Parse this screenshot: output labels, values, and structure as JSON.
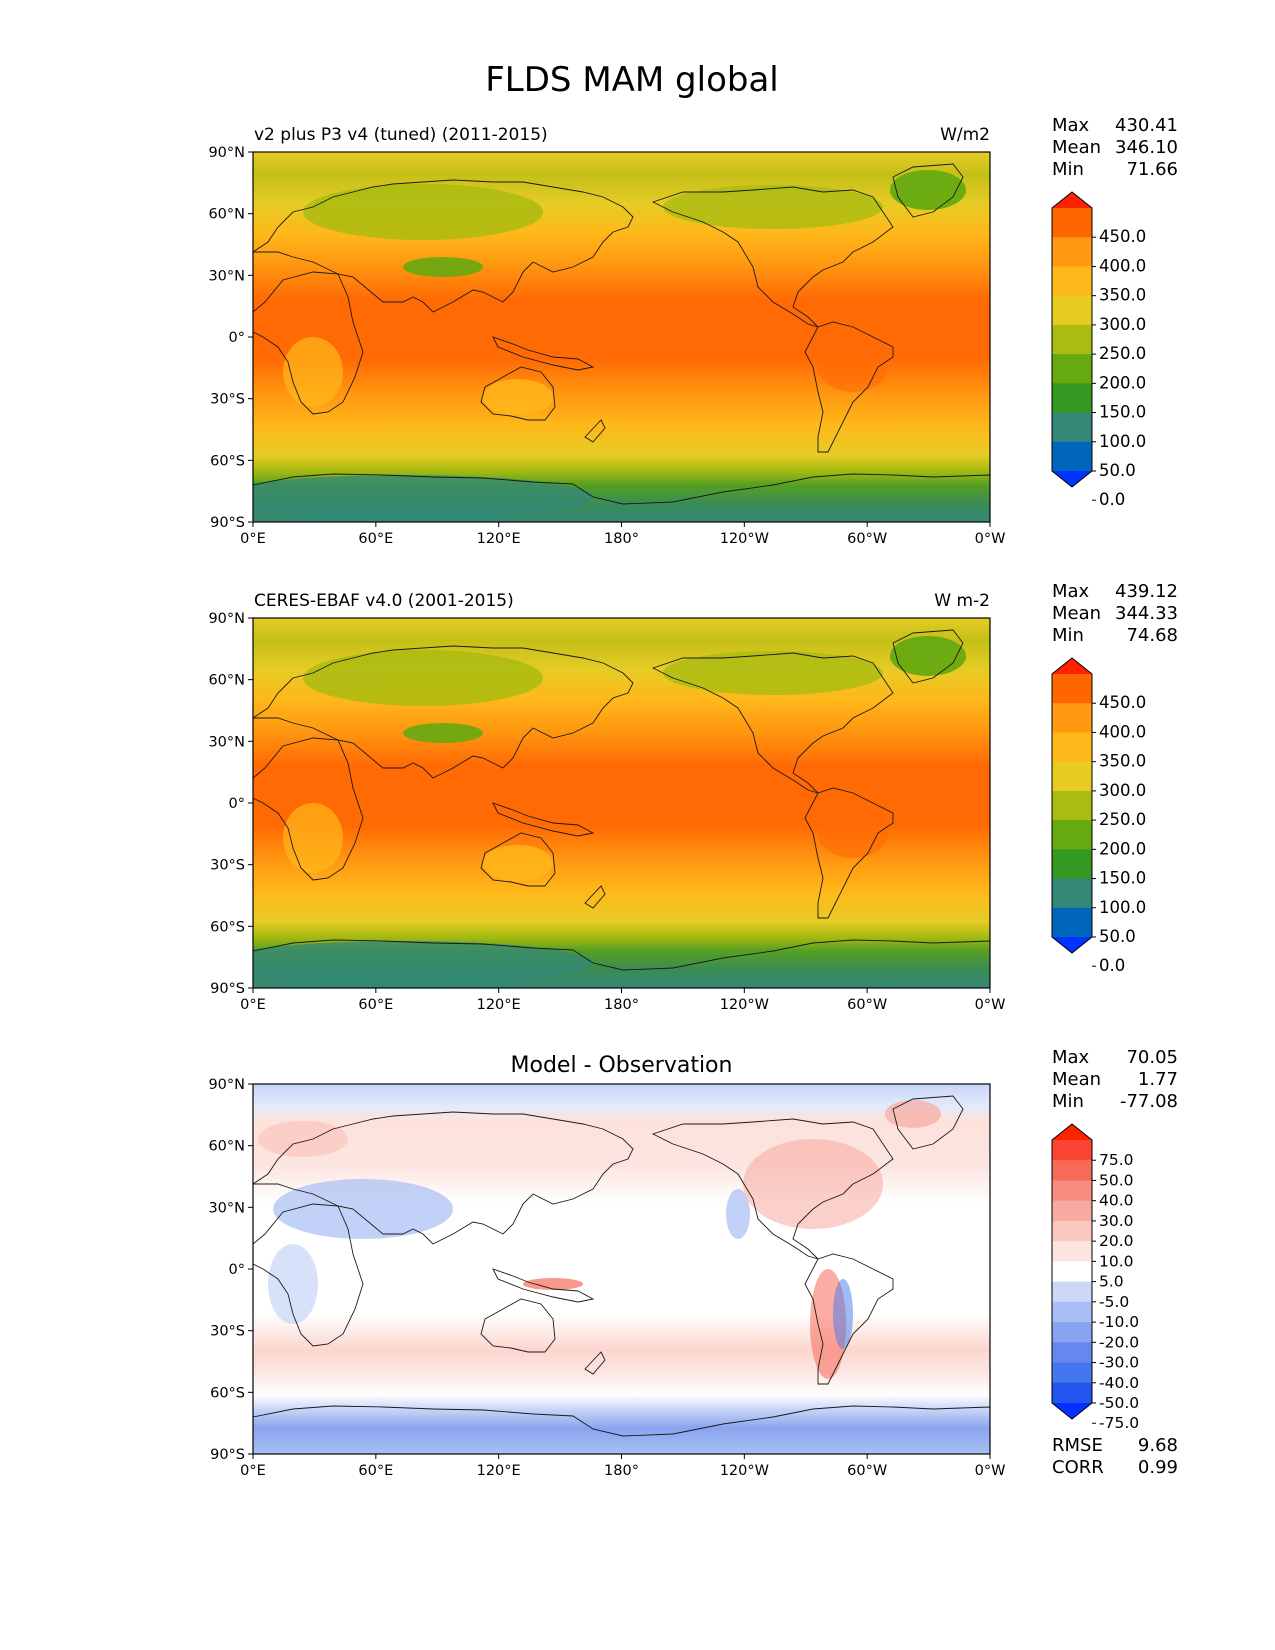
{
  "figure": {
    "title": "FLDS MAM global"
  },
  "axes": {
    "y_ticks": [
      "90°N",
      "60°N",
      "30°N",
      "0°",
      "30°S",
      "60°S",
      "90°S"
    ],
    "x_ticks": [
      "0°E",
      "60°E",
      "120°E",
      "180°",
      "120°W",
      "60°W",
      "0°W"
    ]
  },
  "panels": [
    {
      "title_left": "v2 plus P3 v4 (tuned) (2011-2015)",
      "title_center": "",
      "units": "W/m2",
      "stats": [
        {
          "label": "Max",
          "value": "430.41"
        },
        {
          "label": "Mean",
          "value": "346.10"
        },
        {
          "label": "Min",
          "value": "71.66"
        }
      ],
      "colorbar": {
        "labels": [
          "450.0",
          "400.0",
          "350.0",
          "300.0",
          "250.0",
          "200.0",
          "150.0",
          "100.0",
          "50.0",
          "0.0"
        ],
        "colors": [
          "#0033ff",
          "#0066bb",
          "#338877",
          "#339922",
          "#66aa11",
          "#aabb11",
          "#e8cc22",
          "#ffb81a",
          "#ff9911",
          "#ff6600",
          "#ff2200"
        ]
      }
    },
    {
      "title_left": "CERES-EBAF v4.0 (2001-2015)",
      "title_center": "",
      "units": "W m-2",
      "stats": [
        {
          "label": "Max",
          "value": "439.12"
        },
        {
          "label": "Mean",
          "value": "344.33"
        },
        {
          "label": "Min",
          "value": "74.68"
        }
      ],
      "colorbar": {
        "labels": [
          "450.0",
          "400.0",
          "350.0",
          "300.0",
          "250.0",
          "200.0",
          "150.0",
          "100.0",
          "50.0",
          "0.0"
        ],
        "colors": [
          "#0033ff",
          "#0066bb",
          "#338877",
          "#339922",
          "#66aa11",
          "#aabb11",
          "#e8cc22",
          "#ffb81a",
          "#ff9911",
          "#ff6600",
          "#ff2200"
        ]
      }
    },
    {
      "title_left": "",
      "title_center": "Model - Observation",
      "units": "",
      "stats": [
        {
          "label": "Max",
          "value": "70.05"
        },
        {
          "label": "Mean",
          "value": "1.77"
        },
        {
          "label": "Min",
          "value": "-77.08"
        }
      ],
      "colorbar": {
        "labels": [
          "75.0",
          "50.0",
          "40.0",
          "30.0",
          "20.0",
          "10.0",
          "5.0",
          "-5.0",
          "-10.0",
          "-20.0",
          "-30.0",
          "-40.0",
          "-50.0",
          "-75.0"
        ],
        "colors": [
          "#0033ff",
          "#2255ee",
          "#4477ee",
          "#6688ee",
          "#88a4f0",
          "#a8bef4",
          "#ccd8f8",
          "#ffffff",
          "#fce4e0",
          "#fac8c0",
          "#f8aaa0",
          "#f88c80",
          "#f86a58",
          "#f84430",
          "#ff2200"
        ]
      },
      "footer_stats": [
        {
          "label": "RMSE",
          "value": "9.68"
        },
        {
          "label": "CORR",
          "value": "0.99"
        }
      ]
    }
  ]
}
